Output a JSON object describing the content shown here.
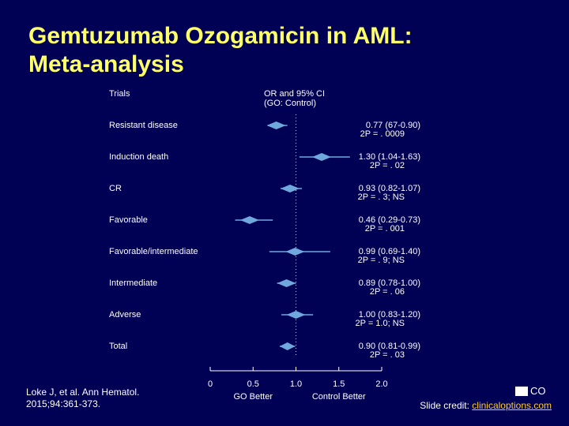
{
  "slide": {
    "title_line1": "Gemtuzumab Ozogamicin in AML:",
    "title_line2": "Meta-analysis",
    "citation_line1": "Loke J, et al. Ann Hematol.",
    "citation_line2": "2015;94:361-373.",
    "credit_prefix": "Slide credit: ",
    "credit_link": "clinicaloptions.com",
    "logo_text": "CO",
    "colors": {
      "background": "#000055",
      "title": "#ffff66",
      "text": "#ffffff",
      "marker": "#6fa8dc",
      "link": "#ffcc33"
    }
  },
  "chart_data": {
    "type": "forest",
    "column_header_trials": "Trials",
    "column_header_or_line1": "OR and 95% CI",
    "column_header_or_line2": "(GO: Control)",
    "x_ticks": [
      "0",
      "0.5",
      "1.0",
      "1.5",
      "2.0"
    ],
    "x_tick_values": [
      0,
      0.5,
      1.0,
      1.5,
      2.0
    ],
    "xlim": [
      0,
      2.0
    ],
    "reference_line": 1.0,
    "x_label_left": "GO Better",
    "x_label_right": "Control Better",
    "rows": [
      {
        "label": "Resistant disease",
        "or": 0.77,
        "ci_low": 0.67,
        "ci_high": 0.9,
        "text1": "0.77 (67-0.90)",
        "text2": "2P = . 0009"
      },
      {
        "label": "Induction death",
        "or": 1.3,
        "ci_low": 1.04,
        "ci_high": 1.63,
        "text1": "1.30 (1.04-1.63)",
        "text2": "2P = . 02"
      },
      {
        "label": "CR",
        "or": 0.93,
        "ci_low": 0.82,
        "ci_high": 1.07,
        "text1": "0.93 (0.82-1.07)",
        "text2": "2P = . 3; NS"
      },
      {
        "label": "Favorable",
        "or": 0.46,
        "ci_low": 0.29,
        "ci_high": 0.73,
        "text1": "0.46 (0.29-0.73)",
        "text2": "2P = . 001"
      },
      {
        "label": "Favorable/intermediate",
        "or": 0.99,
        "ci_low": 0.69,
        "ci_high": 1.4,
        "text1": "0.99 (0.69-1.40)",
        "text2": "2P = . 9; NS"
      },
      {
        "label": "Intermediate",
        "or": 0.89,
        "ci_low": 0.78,
        "ci_high": 1.0,
        "text1": "0.89 (0.78-1.00)",
        "text2": "2P = . 06"
      },
      {
        "label": "Adverse",
        "or": 1.0,
        "ci_low": 0.83,
        "ci_high": 1.2,
        "text1": "1.00 (0.83-1.20)",
        "text2": "2P = 1.0; NS"
      },
      {
        "label": "Total",
        "or": 0.9,
        "ci_low": 0.81,
        "ci_high": 0.99,
        "text1": "0.90 (0.81-0.99)",
        "text2": "2P = . 03"
      }
    ]
  }
}
